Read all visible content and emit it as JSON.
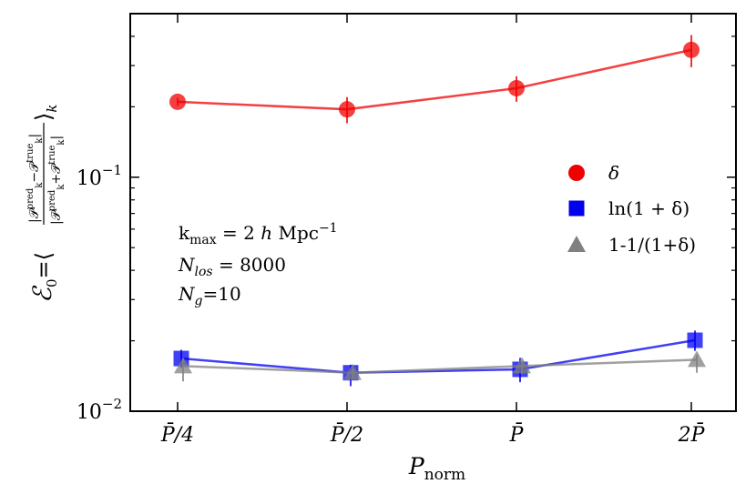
{
  "chart_data": {
    "type": "line",
    "title": "",
    "xlabel": "P_norm",
    "ylabel": "ℰ₀ = ⟨ |P_k^pred − P_k^true| / |P_k^pred + P_k^true| ⟩_k",
    "yscale": "log",
    "ylim": [
      0.01,
      0.5
    ],
    "categories": [
      "P̄/4",
      "P̄/2",
      "P̄",
      "2P̄"
    ],
    "y_ticks": [
      {
        "value": 0.01,
        "base": "10",
        "exp": "−2"
      },
      {
        "value": 0.1,
        "base": "10",
        "exp": "−1"
      }
    ],
    "series": [
      {
        "name": "δ",
        "color": "#f00000",
        "marker": "circle",
        "values": [
          0.21,
          0.195,
          0.24,
          0.35
        ],
        "err_low": [
          0.008,
          0.025,
          0.03,
          0.055
        ],
        "err_high": [
          0.008,
          0.025,
          0.03,
          0.055
        ]
      },
      {
        "name": "ln(1 + δ)",
        "color": "#0000f0",
        "marker": "square",
        "values": [
          0.0168,
          0.0146,
          0.0151,
          0.0201
        ],
        "err_low": [
          0.0015,
          0.0018,
          0.0018,
          0.002
        ],
        "err_high": [
          0.0015,
          0.0012,
          0.0018,
          0.002
        ]
      },
      {
        "name": "1-1/(1+δ)",
        "color": "#808080",
        "marker": "triangle",
        "values": [
          0.0156,
          0.0146,
          0.0156,
          0.0166
        ],
        "err_low": [
          0.0022,
          0.0008,
          0.0012,
          0.002
        ],
        "err_high": [
          0.0012,
          0.0006,
          0.0008,
          0.0008
        ]
      }
    ],
    "legend_position": "right",
    "annotations": [
      "k_max = 2 h Mpc⁻¹",
      "N_los = 8000",
      "N_g=10"
    ],
    "grid": false
  }
}
